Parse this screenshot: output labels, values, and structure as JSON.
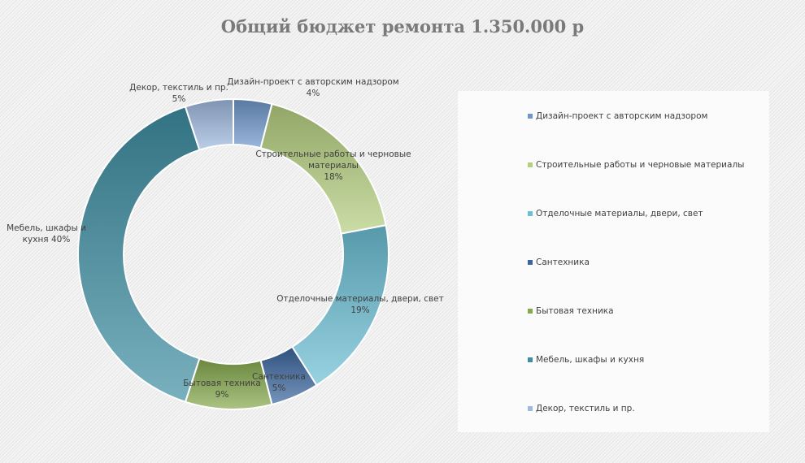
{
  "chart_data": {
    "type": "pie",
    "donut": true,
    "title": "Общий бюджет ремонта 1.350.000 р",
    "categories": [
      "Дизайн-проект с авторским надзором",
      "Строительные работы и черновые материалы",
      "Отделочные материалы, двери, свет",
      "Сантехника",
      "Бытовая техника",
      "Мебель, шкафы и кухня",
      "Декор, текстиль и пр."
    ],
    "values": [
      4,
      18,
      19,
      5,
      9,
      40,
      5
    ],
    "unit": "%",
    "colors": [
      "#6f97cb",
      "#b5cf80",
      "#6cbfd4",
      "#3a669e",
      "#86a94c",
      "#3f8ea2",
      "#9fb9de"
    ],
    "data_labels": [
      [
        "Дизайн-проект с авторским надзором",
        "4%"
      ],
      [
        "Строительные работы и черновые",
        "материалы",
        "18%"
      ],
      [
        "Отделочные материалы, двери, свет",
        "19%"
      ],
      [
        "Сантехника",
        "5%"
      ],
      [
        "Бытовая техника",
        "9%"
      ],
      [
        "Мебель, шкафы и",
        "кухня 40%"
      ],
      [
        "Декор, текстиль и пр.",
        "5%"
      ]
    ],
    "legend_position": "right"
  }
}
